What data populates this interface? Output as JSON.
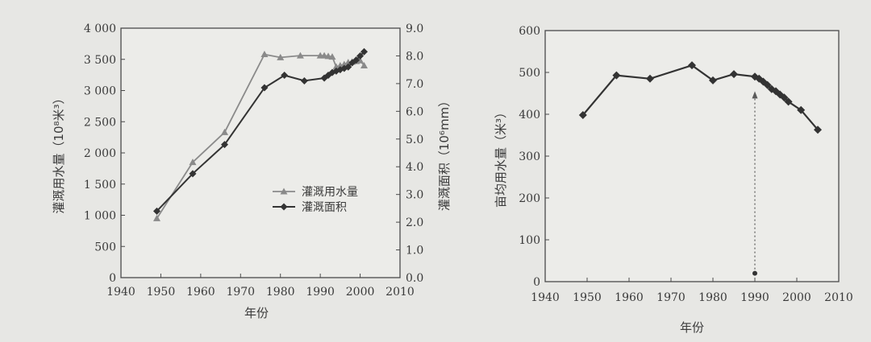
{
  "chart_data": [
    {
      "type": "line",
      "xlabel": "年份",
      "xlim": [
        1940,
        2010
      ],
      "xticks": [
        1940,
        1950,
        1960,
        1970,
        1980,
        1990,
        2000,
        2010
      ],
      "ylabel": "灌溉用水量（10⁸米³）",
      "ylim": [
        0,
        4000
      ],
      "yticks": [
        "0",
        "500",
        "1 000",
        "1 500",
        "2 000",
        "2 500",
        "3 000",
        "3 500",
        "4 000"
      ],
      "y2label": "灌溉面积（10⁶mm）",
      "y2lim": [
        0,
        9
      ],
      "y2ticks": [
        "0.0",
        "1.0",
        "2.0",
        "3.0",
        "4.0",
        "5.0",
        "6.0",
        "7.0",
        "8.0",
        "9.0"
      ],
      "legend_position": "center-right",
      "series": [
        {
          "name": "灌溉用水量",
          "axis": "left",
          "marker": "triangle",
          "color": "#8a8a8a",
          "x": [
            1949,
            1958,
            1966,
            1976,
            1980,
            1985,
            1990,
            1991,
            1992,
            1993,
            1994,
            1995,
            1996,
            1997,
            1998,
            1999,
            2000,
            2001
          ],
          "y": [
            950,
            1850,
            2330,
            3580,
            3530,
            3560,
            3560,
            3560,
            3550,
            3540,
            3380,
            3400,
            3420,
            3450,
            3460,
            3470,
            3480,
            3400
          ]
        },
        {
          "name": "灌溉面积",
          "axis": "right",
          "marker": "diamond",
          "color": "#333333",
          "x": [
            1949,
            1958,
            1966,
            1976,
            1981,
            1986,
            1991,
            1992,
            1993,
            1994,
            1995,
            1996,
            1997,
            1998,
            1999,
            2000,
            2001
          ],
          "y": [
            2.4,
            3.75,
            4.8,
            6.85,
            7.3,
            7.1,
            7.2,
            7.3,
            7.4,
            7.45,
            7.5,
            7.55,
            7.6,
            7.75,
            7.85,
            8.0,
            8.15
          ]
        }
      ]
    },
    {
      "type": "line",
      "xlabel": "年份",
      "xlim": [
        1940,
        2010
      ],
      "xticks": [
        1940,
        1950,
        1960,
        1970,
        1980,
        1990,
        2000,
        2010
      ],
      "ylabel": "亩均用水量（米³）",
      "ylim": [
        0,
        600
      ],
      "yticks": [
        "0",
        "100",
        "200",
        "300",
        "400",
        "500",
        "600"
      ],
      "series": [
        {
          "marker": "diamond",
          "color": "#333333",
          "x": [
            1949,
            1957,
            1965,
            1975,
            1980,
            1985,
            1990,
            1991,
            1992,
            1993,
            1994,
            1995,
            1996,
            1997,
            1998,
            2001,
            2005
          ],
          "y": [
            398,
            493,
            485,
            517,
            481,
            496,
            490,
            485,
            478,
            470,
            460,
            455,
            447,
            440,
            430,
            410,
            363
          ]
        }
      ],
      "annotation": {
        "type": "dotted-arrow",
        "x": 1990,
        "from": 20,
        "to": 455
      }
    }
  ]
}
